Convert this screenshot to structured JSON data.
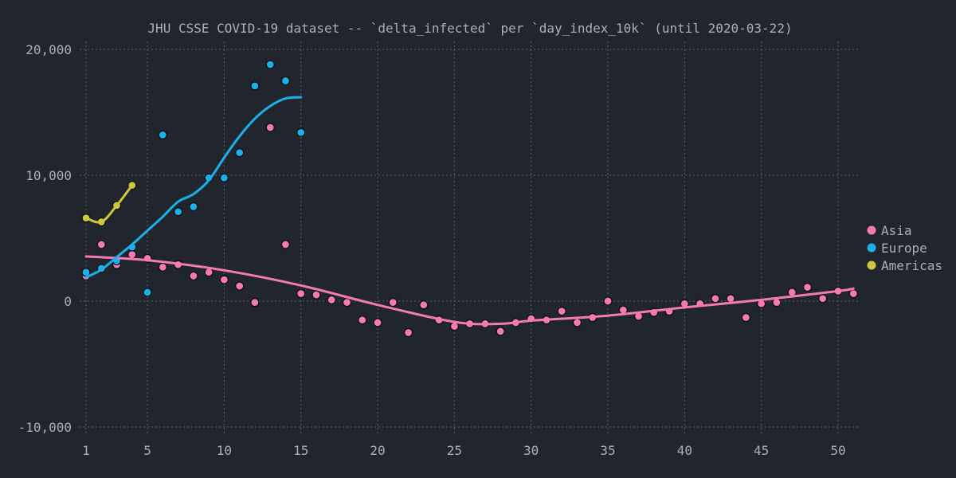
{
  "chart_data": {
    "type": "scatter",
    "title": "JHU CSSE COVID-19 dataset -- `delta_infected` per `day_index_10k` (until 2020-03-22)",
    "xlabel": "",
    "ylabel": "",
    "xlim": [
      0.5,
      51.5
    ],
    "ylim": [
      -10500,
      20500
    ],
    "x_ticks": [
      1,
      5,
      10,
      15,
      20,
      25,
      30,
      35,
      40,
      45,
      50
    ],
    "y_ticks": [
      {
        "value": -10000,
        "label": "-10,000"
      },
      {
        "value": 0,
        "label": "0"
      },
      {
        "value": 10000,
        "label": "10,000"
      },
      {
        "value": 20000,
        "label": "20,000"
      }
    ],
    "grid": true,
    "legend_position": "right",
    "series": [
      {
        "name": "Asia",
        "color": "#f37ab3",
        "points": [
          [
            1,
            2000
          ],
          [
            2,
            4500
          ],
          [
            3,
            2900
          ],
          [
            4,
            3700
          ],
          [
            5,
            3400
          ],
          [
            6,
            2700
          ],
          [
            7,
            2900
          ],
          [
            8,
            2000
          ],
          [
            9,
            2300
          ],
          [
            10,
            1700
          ],
          [
            11,
            1200
          ],
          [
            12,
            -100
          ],
          [
            13,
            13800
          ],
          [
            14,
            4500
          ],
          [
            15,
            600
          ],
          [
            16,
            500
          ],
          [
            17,
            100
          ],
          [
            18,
            -100
          ],
          [
            19,
            -1500
          ],
          [
            20,
            -1700
          ],
          [
            21,
            -100
          ],
          [
            22,
            -2500
          ],
          [
            23,
            -300
          ],
          [
            24,
            -1500
          ],
          [
            25,
            -2000
          ],
          [
            26,
            -1800
          ],
          [
            27,
            -1800
          ],
          [
            28,
            -2400
          ],
          [
            29,
            -1700
          ],
          [
            30,
            -1400
          ],
          [
            31,
            -1500
          ],
          [
            32,
            -800
          ],
          [
            33,
            -1700
          ],
          [
            34,
            -1300
          ],
          [
            35,
            0
          ],
          [
            36,
            -700
          ],
          [
            37,
            -1200
          ],
          [
            38,
            -900
          ],
          [
            39,
            -800
          ],
          [
            40,
            -200
          ],
          [
            41,
            -200
          ],
          [
            42,
            200
          ],
          [
            43,
            200
          ],
          [
            44,
            -1300
          ],
          [
            45,
            -200
          ],
          [
            46,
            -100
          ],
          [
            47,
            700
          ],
          [
            48,
            1100
          ],
          [
            49,
            200
          ],
          [
            50,
            800
          ],
          [
            51,
            600
          ]
        ],
        "trend": [
          [
            1,
            3550
          ],
          [
            5,
            3250
          ],
          [
            10,
            2450
          ],
          [
            15,
            1250
          ],
          [
            20,
            -300
          ],
          [
            25,
            -1650
          ],
          [
            28,
            -1800
          ],
          [
            30,
            -1550
          ],
          [
            35,
            -1150
          ],
          [
            40,
            -500
          ],
          [
            45,
            100
          ],
          [
            50,
            800
          ],
          [
            51,
            1000
          ]
        ]
      },
      {
        "name": "Europe",
        "color": "#1bb0ea",
        "points": [
          [
            1,
            2300
          ],
          [
            2,
            2600
          ],
          [
            3,
            3200
          ],
          [
            4,
            4300
          ],
          [
            5,
            700
          ],
          [
            6,
            13200
          ],
          [
            7,
            7100
          ],
          [
            8,
            7500
          ],
          [
            9,
            9800
          ],
          [
            10,
            9800
          ],
          [
            11,
            11800
          ],
          [
            12,
            17100
          ],
          [
            13,
            18800
          ],
          [
            14,
            17500
          ],
          [
            15,
            13400
          ]
        ],
        "trend": [
          [
            1,
            1900
          ],
          [
            2,
            2500
          ],
          [
            3,
            3500
          ],
          [
            4,
            4500
          ],
          [
            5,
            5600
          ],
          [
            6,
            6700
          ],
          [
            7,
            7900
          ],
          [
            8,
            8500
          ],
          [
            9,
            9600
          ],
          [
            10,
            11400
          ],
          [
            11,
            13100
          ],
          [
            12,
            14500
          ],
          [
            13,
            15500
          ],
          [
            14,
            16100
          ],
          [
            15,
            16200
          ]
        ]
      },
      {
        "name": "Americas",
        "color": "#cfc83f",
        "points": [
          [
            1,
            6600
          ],
          [
            2,
            6300
          ],
          [
            3,
            7600
          ],
          [
            4,
            9200
          ]
        ],
        "trend": [
          [
            1,
            6600
          ],
          [
            2,
            6300
          ],
          [
            3,
            7600
          ],
          [
            4,
            9200
          ]
        ]
      }
    ]
  }
}
